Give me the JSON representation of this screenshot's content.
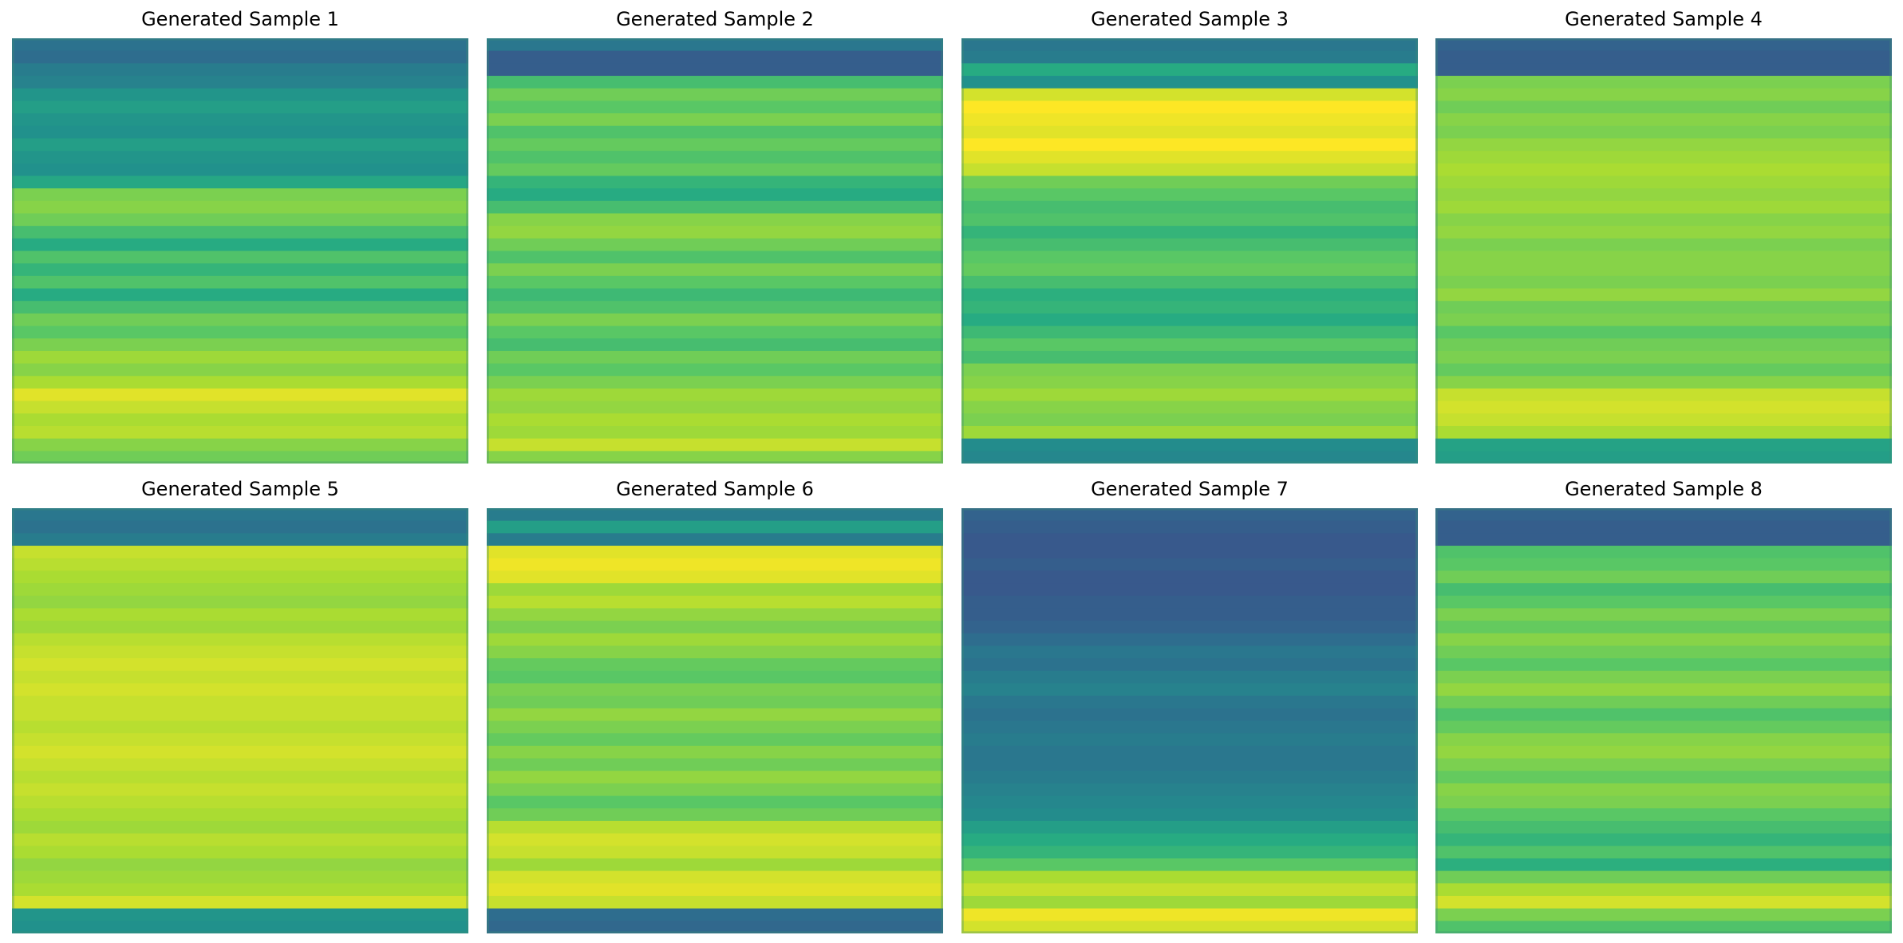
{
  "figure": {
    "colormap": "viridis",
    "panels": [
      {
        "title": "Generated Sample 1",
        "row_values": [
          0.38,
          0.36,
          0.42,
          0.44,
          0.52,
          0.56,
          0.52,
          0.5,
          0.56,
          0.52,
          0.5,
          0.6,
          0.8,
          0.82,
          0.78,
          0.7,
          0.62,
          0.72,
          0.66,
          0.72,
          0.62,
          0.7,
          0.78,
          0.74,
          0.8,
          0.86,
          0.82,
          0.88,
          0.96,
          0.92,
          0.88,
          0.9,
          0.82,
          0.78
        ]
      },
      {
        "title": "Generated Sample 2",
        "row_values": [
          0.4,
          0.3,
          0.3,
          0.7,
          0.78,
          0.74,
          0.8,
          0.72,
          0.76,
          0.72,
          0.76,
          0.66,
          0.62,
          0.7,
          0.82,
          0.84,
          0.78,
          0.72,
          0.8,
          0.74,
          0.68,
          0.72,
          0.8,
          0.74,
          0.7,
          0.78,
          0.74,
          0.8,
          0.86,
          0.84,
          0.88,
          0.86,
          0.92,
          0.82
        ]
      },
      {
        "title": "Generated Sample 3",
        "row_values": [
          0.4,
          0.42,
          0.62,
          0.5,
          0.94,
          1.0,
          0.98,
          0.96,
          1.0,
          0.96,
          0.92,
          0.78,
          0.74,
          0.7,
          0.72,
          0.66,
          0.7,
          0.74,
          0.76,
          0.7,
          0.64,
          0.66,
          0.62,
          0.68,
          0.74,
          0.7,
          0.8,
          0.82,
          0.86,
          0.82,
          0.8,
          0.86,
          0.48,
          0.46
        ]
      },
      {
        "title": "Generated Sample 4",
        "row_values": [
          0.32,
          0.3,
          0.3,
          0.8,
          0.82,
          0.78,
          0.82,
          0.8,
          0.84,
          0.86,
          0.88,
          0.86,
          0.84,
          0.86,
          0.82,
          0.84,
          0.8,
          0.82,
          0.82,
          0.8,
          0.84,
          0.78,
          0.8,
          0.74,
          0.78,
          0.8,
          0.76,
          0.82,
          0.92,
          0.94,
          0.92,
          0.88,
          0.58,
          0.56
        ]
      },
      {
        "title": "Generated Sample 5",
        "row_values": [
          0.4,
          0.38,
          0.42,
          0.92,
          0.9,
          0.88,
          0.86,
          0.84,
          0.88,
          0.86,
          0.9,
          0.92,
          0.94,
          0.92,
          0.94,
          0.92,
          0.92,
          0.9,
          0.92,
          0.94,
          0.92,
          0.9,
          0.92,
          0.9,
          0.88,
          0.86,
          0.9,
          0.88,
          0.84,
          0.86,
          0.88,
          0.94,
          0.52,
          0.5
        ]
      },
      {
        "title": "Generated Sample 6",
        "row_values": [
          0.42,
          0.56,
          0.42,
          0.96,
          0.98,
          0.96,
          0.86,
          0.9,
          0.84,
          0.8,
          0.86,
          0.82,
          0.76,
          0.74,
          0.8,
          0.78,
          0.84,
          0.8,
          0.76,
          0.82,
          0.78,
          0.84,
          0.8,
          0.74,
          0.78,
          0.9,
          0.94,
          0.92,
          0.86,
          0.94,
          0.96,
          0.92,
          0.36,
          0.34
        ]
      },
      {
        "title": "Generated Sample 7",
        "row_values": [
          0.32,
          0.3,
          0.28,
          0.28,
          0.3,
          0.28,
          0.28,
          0.3,
          0.3,
          0.32,
          0.36,
          0.4,
          0.38,
          0.42,
          0.44,
          0.4,
          0.38,
          0.4,
          0.42,
          0.4,
          0.4,
          0.42,
          0.44,
          0.46,
          0.48,
          0.56,
          0.62,
          0.66,
          0.74,
          0.88,
          0.92,
          0.86,
          0.98,
          0.94
        ]
      },
      {
        "title": "Generated Sample 8",
        "row_values": [
          0.32,
          0.3,
          0.3,
          0.72,
          0.74,
          0.78,
          0.7,
          0.74,
          0.8,
          0.76,
          0.82,
          0.78,
          0.74,
          0.8,
          0.84,
          0.78,
          0.72,
          0.76,
          0.82,
          0.84,
          0.8,
          0.76,
          0.82,
          0.8,
          0.74,
          0.7,
          0.66,
          0.72,
          0.64,
          0.78,
          0.88,
          0.94,
          0.8,
          0.72
        ]
      }
    ]
  }
}
